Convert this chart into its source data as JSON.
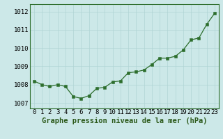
{
  "x": [
    0,
    1,
    2,
    3,
    4,
    5,
    6,
    7,
    8,
    9,
    10,
    11,
    12,
    13,
    14,
    15,
    16,
    17,
    18,
    19,
    20,
    21,
    22,
    23
  ],
  "y": [
    1008.2,
    1008.0,
    1007.9,
    1008.0,
    1007.9,
    1007.35,
    1007.25,
    1007.4,
    1007.8,
    1007.85,
    1008.15,
    1008.2,
    1008.65,
    1008.7,
    1008.8,
    1009.1,
    1009.45,
    1009.45,
    1009.55,
    1009.9,
    1010.45,
    1010.55,
    1011.3,
    1011.9
  ],
  "bg_color": "#cce8e8",
  "line_color": "#2d6e2d",
  "marker_color": "#2d6e2d",
  "grid_color": "#b0d4d4",
  "title": "Graphe pression niveau de la mer (hPa)",
  "ylabel_ticks": [
    1007,
    1008,
    1009,
    1010,
    1011,
    1012
  ],
  "xlabel_ticks": [
    0,
    1,
    2,
    3,
    4,
    5,
    6,
    7,
    8,
    9,
    10,
    11,
    12,
    13,
    14,
    15,
    16,
    17,
    18,
    19,
    20,
    21,
    22,
    23
  ],
  "ylim": [
    1006.7,
    1012.4
  ],
  "xlim": [
    -0.5,
    23.5
  ],
  "tick_fontsize": 6.5,
  "title_fontsize": 7.5,
  "spine_color": "#2d6e2d",
  "title_color": "#2d5a1b"
}
